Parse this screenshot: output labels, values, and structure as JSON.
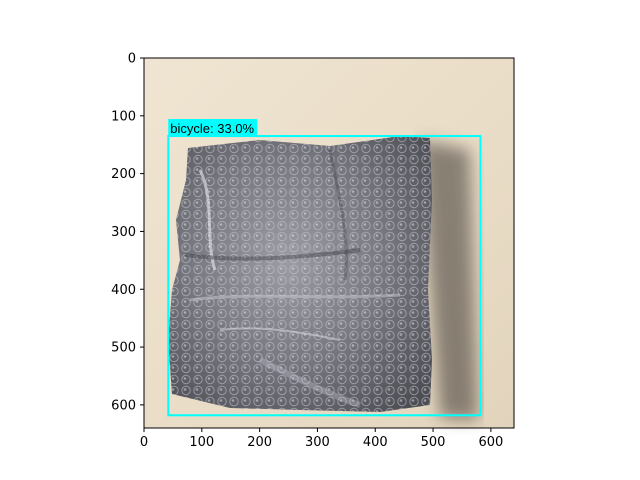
{
  "figure": {
    "x_ticks": [
      "0",
      "100",
      "200",
      "300",
      "400",
      "500",
      "600"
    ],
    "y_ticks": [
      "0",
      "100",
      "200",
      "300",
      "400",
      "500",
      "600"
    ],
    "image_extent": [
      0,
      640
    ],
    "image_description": "photo of crumpled silver bubble-wrap foil on beige surface"
  },
  "detection": {
    "label": "bicycle: 33.0%",
    "box_xmin": 42,
    "box_ymin": 135,
    "box_xmax": 582,
    "box_ymax": 618,
    "box_color": "#00FFFF",
    "label_bg_color": "#00FFFF"
  },
  "colors": {
    "background_beige": "#eadfcb",
    "foil_mid": "#8a8a90",
    "foil_dark": "#4a4a50"
  }
}
